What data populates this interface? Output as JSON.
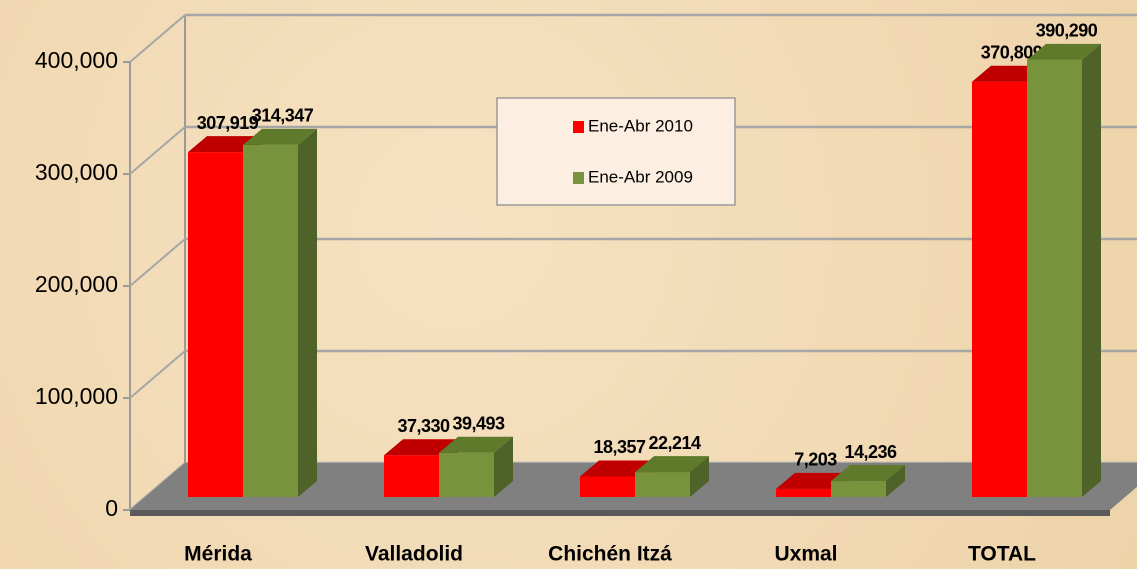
{
  "chart_data": {
    "type": "bar3d",
    "categories": [
      "Mérida",
      "Valladolid",
      "Chichén Itzá",
      "Uxmal",
      "TOTAL"
    ],
    "series": [
      {
        "name": "Ene-Abr 2010",
        "color": "#ff0000",
        "values": [
          307919,
          37330,
          18357,
          7203,
          370809
        ],
        "value_labels": [
          "307,919",
          "37,330",
          "18,357",
          "7,203",
          "370,809"
        ]
      },
      {
        "name": "Ene-Abr 2009",
        "color": "#77933c",
        "values": [
          314347,
          39493,
          22214,
          14236,
          390290
        ],
        "value_labels": [
          "314,347",
          "39,493",
          "22,214",
          "14,236",
          "390,290"
        ]
      }
    ],
    "ylim": [
      0,
      400000
    ],
    "yticks": [
      0,
      {
        "value": 100000,
        "label": "100,000"
      },
      {
        "value": 200000,
        "label": "200,000"
      },
      {
        "value": 300000,
        "label": "300,000"
      },
      {
        "value": 400000,
        "label": "400,000"
      }
    ],
    "grid": true
  }
}
